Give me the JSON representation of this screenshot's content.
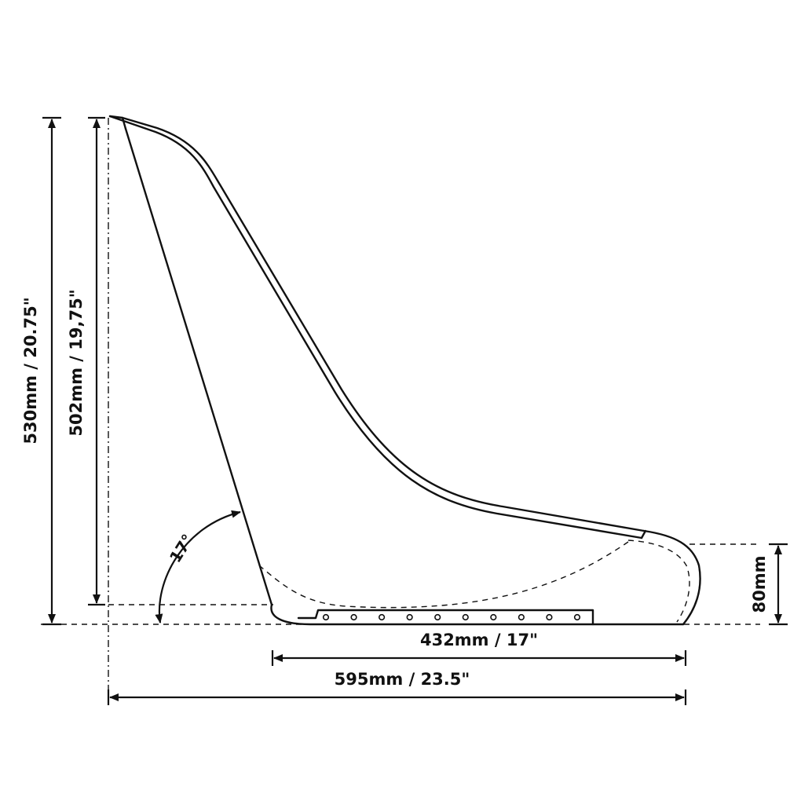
{
  "diagram": {
    "type": "seat-shell-side-profile",
    "line_color": "#111111",
    "background_color": "#ffffff",
    "dimensions": {
      "overall_height": "530mm / 20.75\"",
      "back_height": "502mm / 19,75\"",
      "seat_depth": "432mm / 17\"",
      "overall_length": "595mm / 23.5\"",
      "front_lip_height": "80mm"
    },
    "angle": {
      "label": "17°",
      "degrees": 17
    },
    "mounting_holes": 10
  }
}
